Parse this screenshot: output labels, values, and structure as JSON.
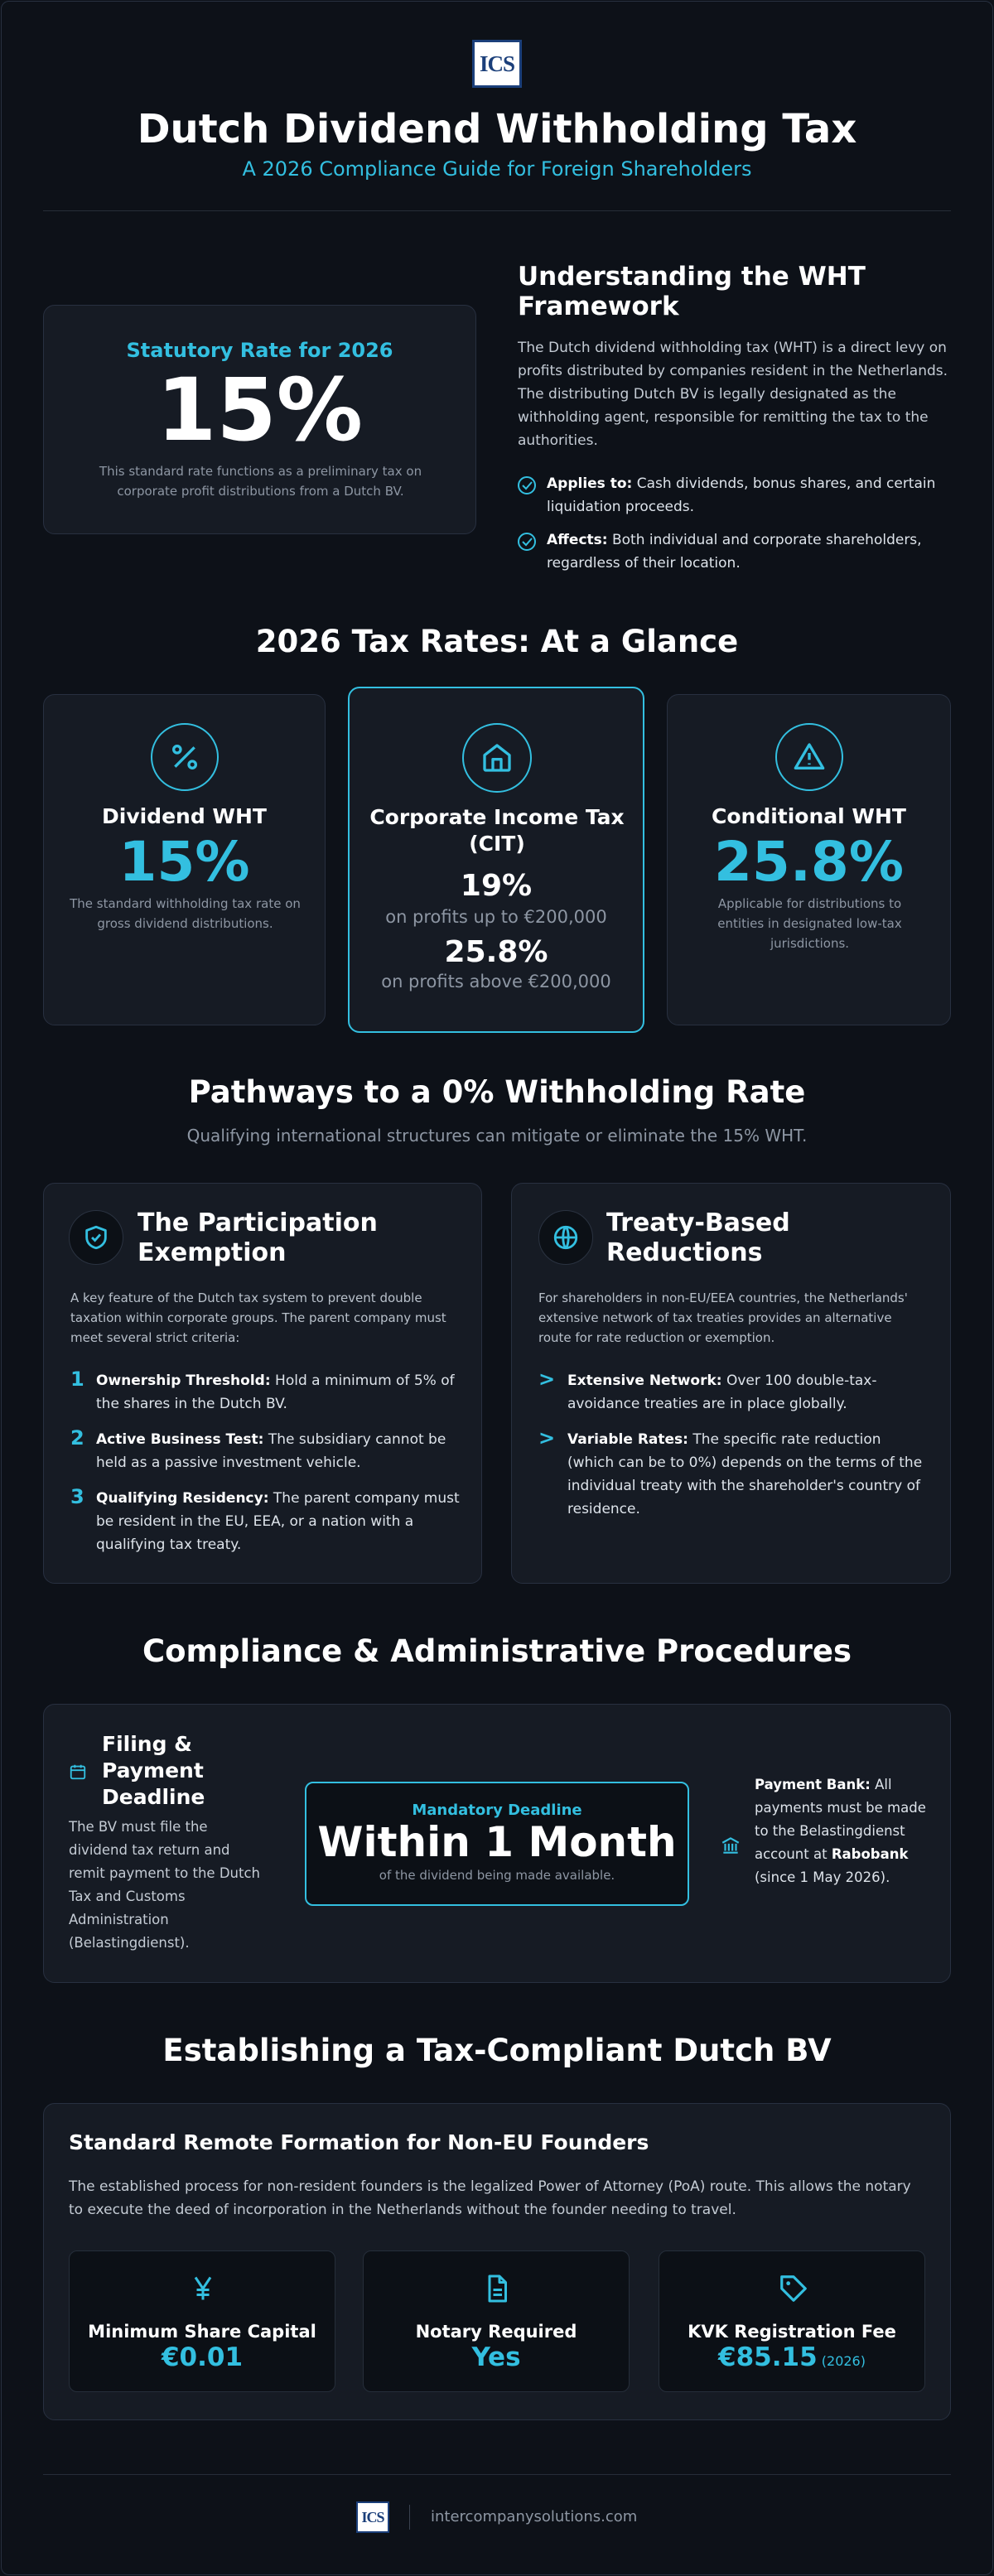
{
  "header": {
    "logo": "ICS",
    "title": "Dutch Dividend Withholding Tax",
    "subtitle": "A 2026 Compliance Guide for Foreign Shareholders"
  },
  "statutory": {
    "label": "Statutory Rate for 2026",
    "rate": "15%",
    "note": "This standard rate functions as a preliminary tax on corporate profit distributions from a Dutch BV."
  },
  "framework": {
    "title": "Understanding the WHT Framework",
    "text": "The Dutch dividend withholding tax (WHT) is a direct levy on profits distributed by companies resident in the Netherlands. The distributing Dutch BV is legally designated as the withholding agent, responsible for remitting the tax to the authorities.",
    "points": [
      {
        "label": "Applies to:",
        "text": "Cash dividends, bonus shares, and certain liquidation proceeds."
      },
      {
        "label": "Affects:",
        "text": "Both individual and corporate shareholders, regardless of their location."
      }
    ]
  },
  "rates": {
    "title": "2026 Tax Rates: At a Glance",
    "cards": [
      {
        "title": "Dividend WHT",
        "value": "15%",
        "note": "The standard withholding tax rate on gross dividend distributions."
      },
      {
        "title": "Corporate Income Tax (CIT)",
        "tiers": [
          {
            "value": "19%",
            "note": "on profits up to €200,000"
          },
          {
            "value": "25.8%",
            "note": "on profits above €200,000"
          }
        ]
      },
      {
        "title": "Conditional WHT",
        "value": "25.8%",
        "note": "Applicable for distributions to entities in designated low-tax jurisdictions."
      }
    ]
  },
  "pathways": {
    "title": "Pathways to a 0% Withholding Rate",
    "subtitle": "Qualifying international structures can mitigate or eliminate the 15% WHT.",
    "participation": {
      "title": "The Participation Exemption",
      "text": "A key feature of the Dutch tax system to prevent double taxation within corporate groups. The parent company must meet several strict criteria:",
      "criteria": [
        {
          "number": "1",
          "label": "Ownership Threshold:",
          "text": "Hold a minimum of 5% of the shares in the Dutch BV."
        },
        {
          "number": "2",
          "label": "Active Business Test:",
          "text": "The subsidiary cannot be held as a passive investment vehicle."
        },
        {
          "number": "3",
          "label": "Qualifying Residency:",
          "text": "The parent company must be resident in the EU, EEA, or a nation with a qualifying tax treaty."
        }
      ]
    },
    "treaty": {
      "title": "Treaty-Based Reductions",
      "text": "For shareholders in non-EU/EEA countries, the Netherlands' extensive network of tax treaties provides an alternative route for rate reduction or exemption.",
      "points": [
        {
          "marker": ">",
          "label": "Extensive Network:",
          "text": "Over 100 double-tax-avoidance treaties are in place globally."
        },
        {
          "marker": ">",
          "label": "Variable Rates:",
          "text": "The specific rate reduction (which can be to 0%) depends on the terms of the individual treaty with the shareholder's country of residence."
        }
      ]
    }
  },
  "compliance": {
    "title": "Compliance & Administrative Procedures",
    "filing": {
      "title": "Filing & Payment Deadline",
      "text": "The BV must file the dividend tax return and remit payment to the Dutch Tax and Customs Administration (Belastingdienst)."
    },
    "deadline": {
      "label": "Mandatory Deadline",
      "value": "Within 1 Month",
      "note": "of the dividend being made available."
    },
    "bank": {
      "label": "Payment Bank:",
      "text": "All payments must be made to the Belastingdienst account at",
      "bank": "Rabobank",
      "after": "(since 1 May 2026)."
    }
  },
  "formation": {
    "title": "Establishing a Tax-Compliant Dutch BV",
    "card_title": "Standard Remote Formation for Non-EU Founders",
    "text": "The established process for non-resident founders is the legalized Power of Attorney (PoA) route. This allows the notary to execute the deed of incorporation in the Netherlands without the founder needing to travel.",
    "facts": [
      {
        "label": "Minimum Share Capital",
        "value": "€0.01"
      },
      {
        "label": "Notary Required",
        "value": "Yes"
      },
      {
        "label": "KVK Registration Fee",
        "value": "€85.15",
        "qualifier": "(2026)"
      }
    ]
  },
  "footer": {
    "logo": "ICS",
    "website": "intercompanysolutions.com"
  }
}
